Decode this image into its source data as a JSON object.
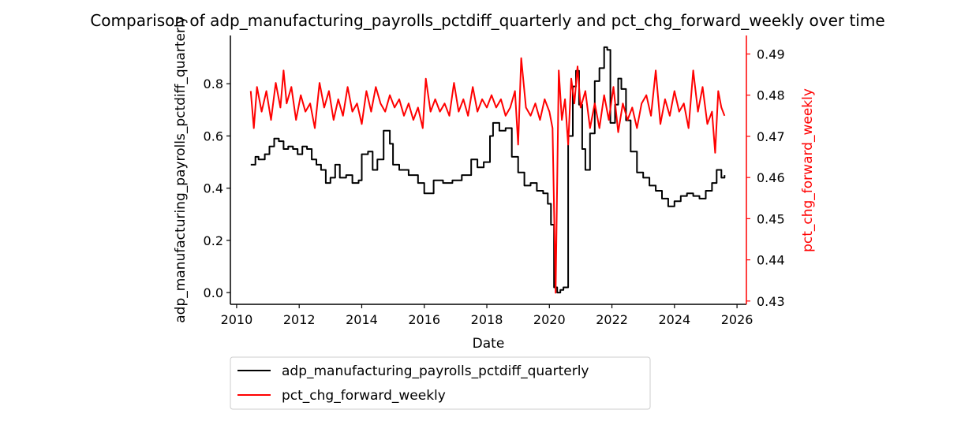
{
  "chart_data": {
    "type": "line",
    "title": "Comparison of adp_manufacturing_payrolls_pctdiff_quarterly and pct_chg_forward_weekly over time",
    "xlabel": "Date",
    "ylabel_left": "adp_manufacturing_payrolls_pctdiff_quarterly",
    "ylabel_right": "pct_chg_forward_weekly",
    "x_ticks": [
      "2010",
      "2012",
      "2014",
      "2016",
      "2018",
      "2020",
      "2022",
      "2024",
      "2026"
    ],
    "x_tick_values": [
      2010,
      2012,
      2014,
      2016,
      2018,
      2020,
      2022,
      2024,
      2026
    ],
    "xlim": [
      2009.8,
      2026.3
    ],
    "y_left_ticks": [
      "0.0",
      "0.2",
      "0.4",
      "0.6",
      "0.8"
    ],
    "y_left_tick_values": [
      0.0,
      0.2,
      0.4,
      0.6,
      0.8
    ],
    "ylim_left": [
      -0.045,
      0.985
    ],
    "y_right_ticks": [
      "0.43",
      "0.44",
      "0.45",
      "0.46",
      "0.47",
      "0.48",
      "0.49"
    ],
    "y_right_tick_values": [
      0.43,
      0.44,
      0.45,
      0.46,
      0.47,
      0.48,
      0.49
    ],
    "ylim_right": [
      0.4292,
      0.4945
    ],
    "grid": false,
    "legend_position": "below plot",
    "colors": {
      "series_1": "#000000",
      "series_2": "#ff0000",
      "axis_right": "#ff0000"
    },
    "series": [
      {
        "name": "adp_manufacturing_payrolls_pctdiff_quarterly",
        "axis": "left",
        "x": [
          2010.45,
          2010.6,
          2010.7,
          2010.9,
          2011.05,
          2011.2,
          2011.35,
          2011.5,
          2011.65,
          2011.8,
          2011.95,
          2012.1,
          2012.25,
          2012.4,
          2012.55,
          2012.7,
          2012.85,
          2013.0,
          2013.15,
          2013.3,
          2013.5,
          2013.7,
          2013.9,
          2014.0,
          2014.2,
          2014.35,
          2014.5,
          2014.7,
          2014.9,
          2015.0,
          2015.2,
          2015.5,
          2015.8,
          2016.0,
          2016.3,
          2016.6,
          2016.9,
          2017.2,
          2017.5,
          2017.7,
          2017.9,
          2018.1,
          2018.2,
          2018.4,
          2018.6,
          2018.8,
          2019.0,
          2019.2,
          2019.4,
          2019.6,
          2019.8,
          2019.95,
          2020.05,
          2020.15,
          2020.25,
          2020.35,
          2020.45,
          2020.6,
          2020.75,
          2020.85,
          2020.95,
          2021.05,
          2021.15,
          2021.3,
          2021.45,
          2021.6,
          2021.75,
          2021.85,
          2021.95,
          2022.1,
          2022.2,
          2022.3,
          2022.45,
          2022.6,
          2022.8,
          2023.0,
          2023.2,
          2023.4,
          2023.6,
          2023.8,
          2024.0,
          2024.2,
          2024.4,
          2024.6,
          2024.8,
          2025.0,
          2025.2,
          2025.35,
          2025.5,
          2025.6
        ],
        "values": [
          0.49,
          0.52,
          0.51,
          0.53,
          0.56,
          0.59,
          0.58,
          0.55,
          0.56,
          0.55,
          0.53,
          0.56,
          0.55,
          0.51,
          0.49,
          0.47,
          0.42,
          0.44,
          0.49,
          0.44,
          0.45,
          0.42,
          0.43,
          0.53,
          0.54,
          0.47,
          0.51,
          0.62,
          0.57,
          0.49,
          0.47,
          0.45,
          0.42,
          0.38,
          0.43,
          0.42,
          0.43,
          0.45,
          0.51,
          0.48,
          0.5,
          0.6,
          0.65,
          0.62,
          0.63,
          0.52,
          0.46,
          0.41,
          0.42,
          0.39,
          0.38,
          0.34,
          0.26,
          0.02,
          0.0,
          0.01,
          0.02,
          0.6,
          0.79,
          0.85,
          0.72,
          0.55,
          0.47,
          0.61,
          0.81,
          0.86,
          0.94,
          0.93,
          0.65,
          0.72,
          0.82,
          0.78,
          0.66,
          0.54,
          0.46,
          0.44,
          0.41,
          0.39,
          0.36,
          0.33,
          0.35,
          0.37,
          0.38,
          0.37,
          0.36,
          0.39,
          0.42,
          0.47,
          0.44,
          0.45
        ]
      },
      {
        "name": "pct_chg_forward_weekly",
        "axis": "right",
        "x": [
          2010.45,
          2010.55,
          2010.65,
          2010.8,
          2010.95,
          2011.1,
          2011.25,
          2011.4,
          2011.5,
          2011.6,
          2011.75,
          2011.9,
          2012.05,
          2012.2,
          2012.35,
          2012.5,
          2012.65,
          2012.8,
          2012.95,
          2013.1,
          2013.25,
          2013.4,
          2013.55,
          2013.7,
          2013.85,
          2014.0,
          2014.15,
          2014.3,
          2014.45,
          2014.6,
          2014.75,
          2014.9,
          2015.05,
          2015.2,
          2015.35,
          2015.5,
          2015.65,
          2015.8,
          2015.95,
          2016.05,
          2016.2,
          2016.35,
          2016.5,
          2016.65,
          2016.8,
          2016.95,
          2017.1,
          2017.25,
          2017.4,
          2017.55,
          2017.7,
          2017.85,
          2018.0,
          2018.15,
          2018.3,
          2018.45,
          2018.6,
          2018.75,
          2018.9,
          2019.0,
          2019.1,
          2019.25,
          2019.4,
          2019.55,
          2019.7,
          2019.85,
          2020.0,
          2020.1,
          2020.2,
          2020.3,
          2020.4,
          2020.5,
          2020.6,
          2020.7,
          2020.8,
          2020.9,
          2021.0,
          2021.15,
          2021.3,
          2021.45,
          2021.6,
          2021.75,
          2021.9,
          2022.05,
          2022.2,
          2022.35,
          2022.5,
          2022.65,
          2022.8,
          2022.95,
          2023.1,
          2023.25,
          2023.4,
          2023.55,
          2023.7,
          2023.85,
          2024.0,
          2024.15,
          2024.3,
          2024.45,
          2024.6,
          2024.75,
          2024.9,
          2025.05,
          2025.2,
          2025.3,
          2025.4,
          2025.5,
          2025.6
        ],
        "values": [
          0.481,
          0.472,
          0.482,
          0.476,
          0.481,
          0.474,
          0.483,
          0.477,
          0.486,
          0.478,
          0.482,
          0.474,
          0.48,
          0.476,
          0.478,
          0.472,
          0.483,
          0.477,
          0.481,
          0.474,
          0.479,
          0.475,
          0.482,
          0.476,
          0.478,
          0.473,
          0.481,
          0.476,
          0.482,
          0.478,
          0.476,
          0.48,
          0.477,
          0.479,
          0.475,
          0.478,
          0.474,
          0.477,
          0.472,
          0.484,
          0.476,
          0.479,
          0.476,
          0.478,
          0.475,
          0.483,
          0.476,
          0.479,
          0.475,
          0.482,
          0.476,
          0.479,
          0.477,
          0.48,
          0.477,
          0.479,
          0.475,
          0.477,
          0.481,
          0.468,
          0.489,
          0.477,
          0.475,
          0.478,
          0.474,
          0.479,
          0.476,
          0.472,
          0.432,
          0.486,
          0.474,
          0.479,
          0.468,
          0.484,
          0.478,
          0.487,
          0.477,
          0.481,
          0.472,
          0.478,
          0.472,
          0.48,
          0.474,
          0.482,
          0.471,
          0.478,
          0.474,
          0.477,
          0.472,
          0.478,
          0.48,
          0.475,
          0.486,
          0.473,
          0.479,
          0.475,
          0.481,
          0.476,
          0.478,
          0.472,
          0.486,
          0.476,
          0.482,
          0.473,
          0.476,
          0.466,
          0.481,
          0.477,
          0.475
        ]
      }
    ]
  }
}
